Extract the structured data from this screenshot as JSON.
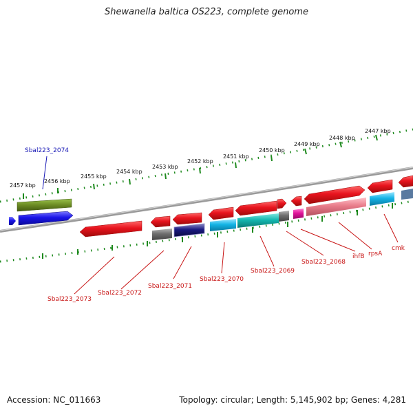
{
  "title": "Shewanella baltica OS223, complete genome",
  "footer": {
    "accession": "Accession: NC_011663",
    "summary": "Topology: circular; Length: 5,145,902 bp; Genes: 4,281"
  },
  "scale_labels": [
    "2457 kbp",
    "2456 kbp",
    "2455 kbp",
    "2454 kbp",
    "2453 kbp",
    "2452 kbp",
    "2451 kbp",
    "2450 kbp",
    "2449 kbp",
    "2448 kbp",
    "2447 kbp"
  ],
  "gene_labels": [
    "Sbal223_2074",
    "Sbal223_2073",
    "Sbal223_2072",
    "Sbal223_2071",
    "Sbal223_2070",
    "Sbal223_2069",
    "Sbal223_2068",
    "ihfB",
    "rpsA",
    "cmk"
  ],
  "colors": {
    "cds_red": "#e8141e",
    "cds_blue": "#1a14e8",
    "cds_olive": "#6b8a23",
    "gray": "#6e6e6e",
    "cyan": "#14b4e6",
    "teal": "#14b8b0",
    "pink": "#e87c8a",
    "magenta": "#e0149a",
    "navy": "#1a1a80",
    "tick_green": "#1e8a1e",
    "backbone": "#8c8c8c",
    "red_label": "#c81414",
    "blue_label": "#1414b4"
  }
}
